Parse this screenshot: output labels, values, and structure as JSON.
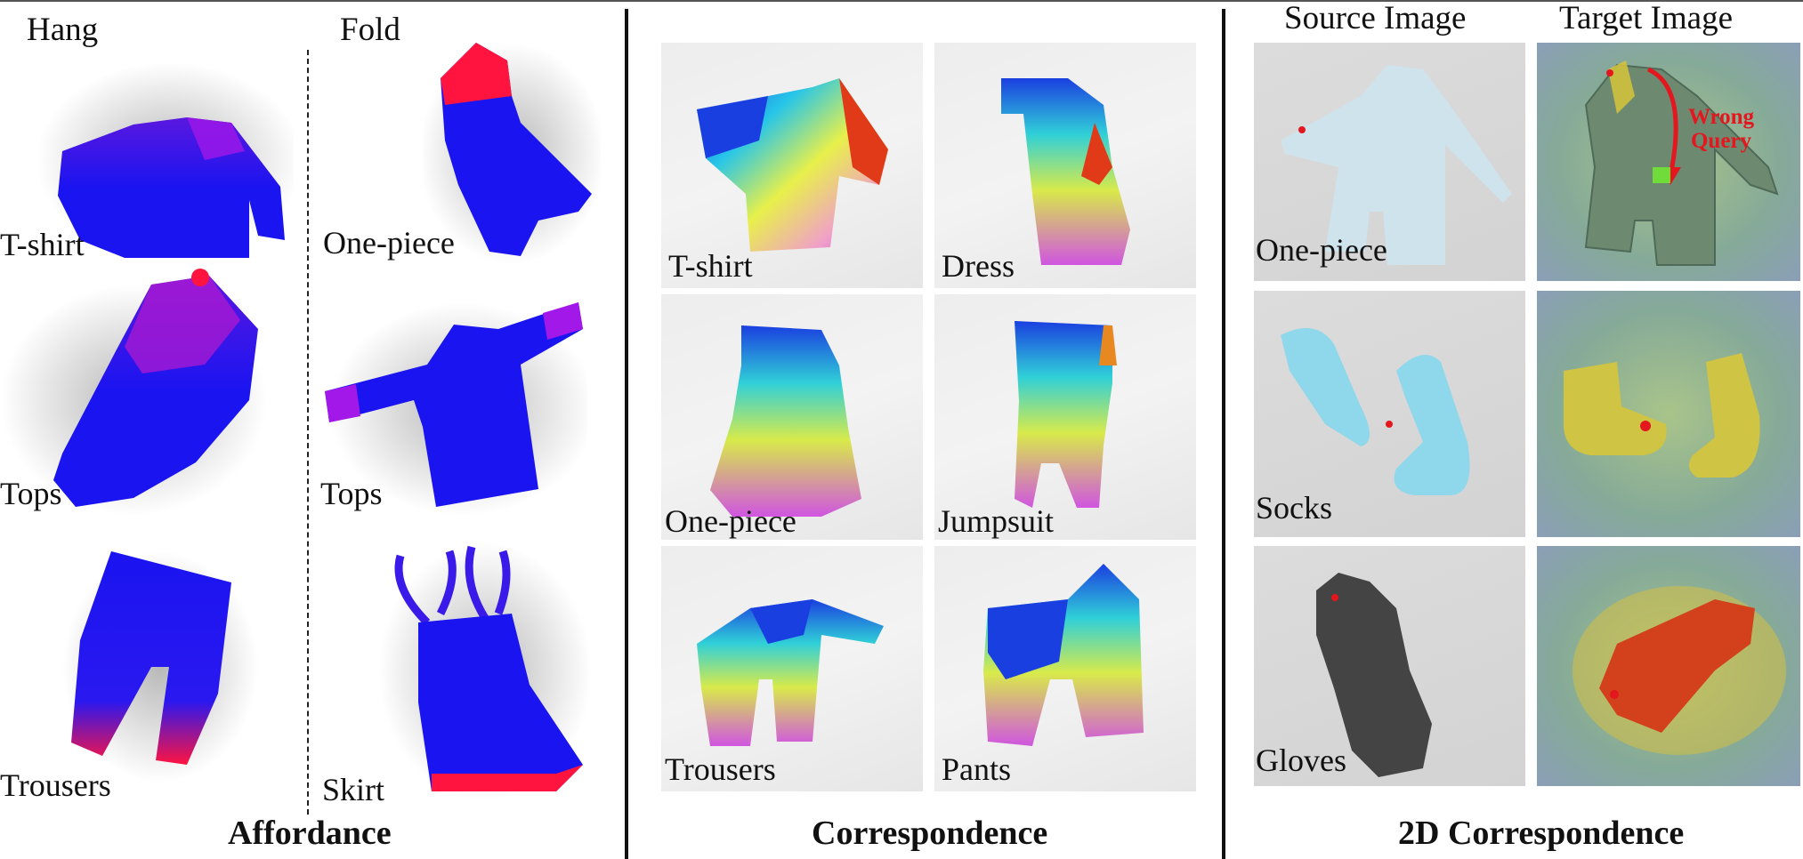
{
  "affordance": {
    "headers": {
      "left": "Hang",
      "right": "Fold"
    },
    "hang_items": [
      "T-shirt",
      "Tops",
      "Trousers"
    ],
    "fold_items": [
      "One-piece",
      "Tops",
      "Skirt"
    ],
    "title": "Affordance",
    "colors": {
      "base": "#1a14f0",
      "high": "#ff1440"
    }
  },
  "correspondence": {
    "labels": [
      "T-shirt",
      "Dress",
      "One-piece",
      "Jumpsuit",
      "Trousers",
      "Pants"
    ],
    "title": "Correspondence"
  },
  "correspondence2d": {
    "headers": {
      "source": "Source Image",
      "target": "Target Image"
    },
    "labels": [
      "One-piece",
      "Socks",
      "Gloves"
    ],
    "annotation": {
      "line1": "Wrong",
      "line2": "Query"
    },
    "title": "2D Correspondence",
    "colors": {
      "query_point": "#e4161e",
      "garment_source": "#cfe3ec",
      "socks": "#8fd7ea",
      "gloves": "#444444"
    }
  }
}
